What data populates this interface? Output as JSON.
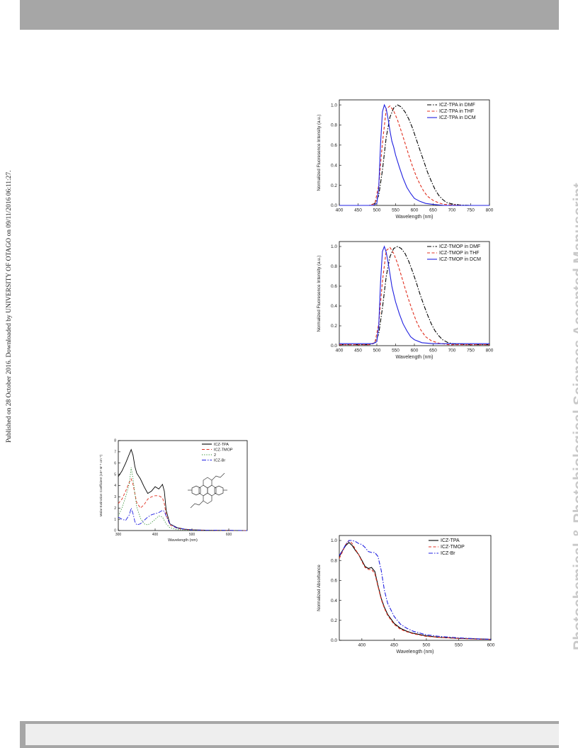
{
  "page": {
    "side_note": "Published on 28 October 2016. Downloaded by UNIVERSITY OF OTAGO on 09/11/2016 06:11:27.",
    "watermark": "Photochemical & Photobiological Sciences Accepted Manuscript"
  },
  "chart_data": [
    {
      "id": "fluor-tpa",
      "type": "line",
      "xlabel": "Wavelength (nm)",
      "ylabel": "Normalized Fluoresence Intensity (a.u.)",
      "xlim": [
        400,
        800
      ],
      "ylim": [
        0,
        1.05
      ],
      "xticks": [
        400,
        450,
        500,
        550,
        600,
        650,
        700,
        750,
        800
      ],
      "yticks": [
        0.0,
        0.2,
        0.4,
        0.6,
        0.8,
        1.0
      ],
      "legend_position": "top-right",
      "series": [
        {
          "name": "ICZ-TPA  in DMF",
          "color": "#000000",
          "style": "dashdot",
          "x": [
            400,
            480,
            495,
            505,
            515,
            525,
            535,
            545,
            555,
            565,
            575,
            585,
            595,
            605,
            615,
            625,
            635,
            645,
            655,
            665,
            675,
            685,
            700,
            720,
            750,
            800
          ],
          "y": [
            0,
            0,
            0.02,
            0.1,
            0.35,
            0.68,
            0.88,
            0.97,
            1.0,
            0.98,
            0.93,
            0.86,
            0.77,
            0.66,
            0.55,
            0.44,
            0.33,
            0.24,
            0.16,
            0.1,
            0.06,
            0.03,
            0.015,
            0.005,
            0,
            0
          ]
        },
        {
          "name": "ICZ-TPA  in THF",
          "color": "#e03020",
          "style": "dash",
          "x": [
            400,
            480,
            495,
            505,
            515,
            525,
            535,
            545,
            555,
            565,
            575,
            585,
            595,
            605,
            615,
            625,
            635,
            650,
            665,
            680,
            700,
            730,
            800
          ],
          "y": [
            0,
            0,
            0.02,
            0.2,
            0.62,
            0.96,
            0.99,
            0.94,
            0.85,
            0.74,
            0.62,
            0.5,
            0.39,
            0.29,
            0.21,
            0.14,
            0.09,
            0.05,
            0.025,
            0.01,
            0.005,
            0,
            0
          ]
        },
        {
          "name": "ICZ-TPA  in DCM",
          "color": "#2020e0",
          "style": "solid",
          "x": [
            400,
            490,
            500,
            505,
            510,
            515,
            520,
            525,
            530,
            535,
            540,
            545,
            550,
            560,
            570,
            580,
            590,
            600,
            615,
            630,
            650,
            680,
            720,
            800
          ],
          "y": [
            0,
            0,
            0.02,
            0.18,
            0.62,
            0.93,
            1.0,
            0.96,
            0.86,
            0.74,
            0.64,
            0.58,
            0.5,
            0.38,
            0.27,
            0.18,
            0.12,
            0.07,
            0.04,
            0.02,
            0.01,
            0,
            0,
            0
          ]
        }
      ]
    },
    {
      "id": "fluor-tmop",
      "type": "line",
      "xlabel": "Wavelength (nm)",
      "ylabel": "Normalized Fluoresence Intensity (a.u.)",
      "xlim": [
        400,
        800
      ],
      "ylim": [
        0,
        1.05
      ],
      "xticks": [
        400,
        450,
        500,
        550,
        600,
        650,
        700,
        750,
        800
      ],
      "yticks": [
        0.0,
        0.2,
        0.4,
        0.6,
        0.8,
        1.0
      ],
      "legend_position": "top-right",
      "series": [
        {
          "name": "ICZ-TMOP in DMF",
          "color": "#000000",
          "style": "dashdot",
          "x": [
            400,
            480,
            495,
            505,
            515,
            525,
            535,
            545,
            555,
            565,
            575,
            585,
            595,
            605,
            615,
            625,
            635,
            645,
            655,
            665,
            675,
            690,
            710,
            740,
            800
          ],
          "y": [
            0.01,
            0.01,
            0.03,
            0.12,
            0.38,
            0.7,
            0.9,
            0.98,
            1.0,
            0.98,
            0.93,
            0.85,
            0.75,
            0.64,
            0.52,
            0.41,
            0.31,
            0.22,
            0.15,
            0.1,
            0.06,
            0.03,
            0.015,
            0.01,
            0.01
          ]
        },
        {
          "name": "ICZ-TMOP in THF",
          "color": "#e03020",
          "style": "dash",
          "x": [
            400,
            480,
            495,
            505,
            515,
            525,
            535,
            545,
            555,
            565,
            575,
            585,
            595,
            605,
            615,
            630,
            645,
            665,
            690,
            720,
            800
          ],
          "y": [
            0.01,
            0.01,
            0.03,
            0.22,
            0.65,
            0.96,
            0.99,
            0.93,
            0.83,
            0.71,
            0.58,
            0.46,
            0.35,
            0.25,
            0.17,
            0.09,
            0.05,
            0.025,
            0.01,
            0.01,
            0.01
          ]
        },
        {
          "name": "ICZ-TMOP in DCM",
          "color": "#2020e0",
          "style": "solid",
          "x": [
            400,
            490,
            500,
            505,
            510,
            515,
            520,
            525,
            530,
            535,
            540,
            545,
            550,
            560,
            570,
            580,
            590,
            600,
            620,
            650,
            700,
            800
          ],
          "y": [
            0.02,
            0.02,
            0.04,
            0.2,
            0.65,
            0.95,
            1.0,
            0.94,
            0.84,
            0.72,
            0.6,
            0.52,
            0.44,
            0.32,
            0.22,
            0.15,
            0.09,
            0.06,
            0.03,
            0.02,
            0.02,
            0.02
          ]
        }
      ]
    },
    {
      "id": "absorption",
      "type": "line",
      "xlabel": "Wavelength (nm)",
      "ylabel": "Molar Extinction Coefficient (10⁴ M⁻¹ cm⁻¹)",
      "xlim": [
        300,
        650
      ],
      "ylim": [
        0,
        8
      ],
      "xticks": [
        300,
        400,
        500,
        600
      ],
      "yticks": [
        0,
        1,
        2,
        3,
        4,
        5,
        6,
        7,
        8
      ],
      "legend_position": "top-right",
      "series": [
        {
          "name": "ICZ-TPA",
          "color": "#000000",
          "style": "solid",
          "x": [
            300,
            310,
            320,
            330,
            335,
            340,
            345,
            350,
            360,
            370,
            380,
            390,
            400,
            410,
            415,
            420,
            425,
            430,
            440,
            460,
            480,
            500,
            550,
            650
          ],
          "y": [
            4.8,
            5.3,
            6.0,
            6.8,
            7.2,
            6.7,
            5.7,
            5.1,
            4.6,
            3.9,
            3.3,
            3.5,
            3.9,
            3.7,
            3.9,
            4.1,
            3.5,
            1.8,
            0.6,
            0.25,
            0.12,
            0.06,
            0.02,
            0
          ]
        },
        {
          "name": "ICZ-TMOP",
          "color": "#e03020",
          "style": "dash",
          "x": [
            300,
            310,
            320,
            330,
            335,
            340,
            345,
            350,
            360,
            370,
            380,
            390,
            400,
            410,
            420,
            425,
            430,
            440,
            460,
            480,
            500,
            550,
            650
          ],
          "y": [
            2.4,
            2.8,
            3.5,
            4.3,
            4.6,
            4.1,
            3.3,
            2.5,
            2.0,
            2.3,
            2.8,
            3.0,
            3.1,
            3.1,
            2.9,
            2.4,
            1.4,
            0.5,
            0.2,
            0.1,
            0.05,
            0.02,
            0
          ]
        },
        {
          "name": "2",
          "color": "#2a8a2a",
          "style": "dot",
          "x": [
            300,
            310,
            320,
            330,
            335,
            340,
            345,
            350,
            360,
            370,
            380,
            390,
            400,
            410,
            420,
            430,
            440,
            460,
            500,
            650
          ],
          "y": [
            1.3,
            2.0,
            3.0,
            4.2,
            5.6,
            4.6,
            3.3,
            2.1,
            1.1,
            0.6,
            0.5,
            0.7,
            1.0,
            1.3,
            1.2,
            0.6,
            0.25,
            0.08,
            0.03,
            0
          ]
        },
        {
          "name": "ICZ-Br",
          "color": "#2020e0",
          "style": "dashdot",
          "x": [
            300,
            310,
            320,
            330,
            335,
            340,
            345,
            350,
            360,
            370,
            380,
            390,
            400,
            410,
            420,
            425,
            430,
            440,
            460,
            500,
            650
          ],
          "y": [
            1.2,
            1.0,
            0.9,
            1.4,
            2.0,
            1.5,
            0.8,
            0.5,
            0.6,
            0.9,
            1.2,
            1.4,
            1.5,
            1.6,
            1.8,
            1.7,
            1.3,
            0.6,
            0.2,
            0.05,
            0
          ]
        }
      ]
    },
    {
      "id": "norm-absorbance",
      "type": "line",
      "xlabel": "Wavelength (nm)",
      "ylabel": "Normalized Absorbance",
      "xlim": [
        365,
        600
      ],
      "ylim": [
        0,
        1.05
      ],
      "xticks": [
        400,
        450,
        500,
        550,
        600
      ],
      "yticks": [
        0.0,
        0.2,
        0.4,
        0.6,
        0.8,
        1.0
      ],
      "legend_position": "top-right",
      "series": [
        {
          "name": "ICZ-TPA",
          "color": "#000000",
          "style": "solid",
          "x": [
            365,
            370,
            375,
            380,
            385,
            390,
            395,
            400,
            405,
            410,
            415,
            420,
            425,
            430,
            435,
            440,
            450,
            460,
            470,
            480,
            500,
            520,
            550,
            580,
            600
          ],
          "y": [
            0.84,
            0.9,
            0.95,
            0.98,
            0.95,
            0.9,
            0.86,
            0.8,
            0.74,
            0.72,
            0.73,
            0.69,
            0.55,
            0.42,
            0.33,
            0.26,
            0.17,
            0.12,
            0.09,
            0.07,
            0.045,
            0.03,
            0.02,
            0.015,
            0.01
          ]
        },
        {
          "name": "ICZ-TMOP",
          "color": "#e03020",
          "style": "dash",
          "x": [
            365,
            370,
            375,
            380,
            385,
            390,
            395,
            400,
            405,
            410,
            415,
            420,
            425,
            430,
            435,
            440,
            450,
            460,
            470,
            480,
            500,
            520,
            550,
            580,
            600
          ],
          "y": [
            0.82,
            0.89,
            0.96,
            1.0,
            0.97,
            0.91,
            0.86,
            0.79,
            0.73,
            0.71,
            0.71,
            0.67,
            0.54,
            0.41,
            0.32,
            0.25,
            0.16,
            0.11,
            0.085,
            0.065,
            0.04,
            0.03,
            0.02,
            0.012,
            0.01
          ]
        },
        {
          "name": "ICZ-Br",
          "color": "#2020e0",
          "style": "dashdot",
          "x": [
            365,
            370,
            375,
            380,
            385,
            390,
            395,
            400,
            405,
            410,
            415,
            420,
            425,
            430,
            435,
            440,
            450,
            460,
            470,
            480,
            500,
            520,
            550,
            580,
            600
          ],
          "y": [
            0.85,
            0.9,
            0.96,
            1.0,
            1.0,
            0.99,
            0.97,
            0.96,
            0.93,
            0.89,
            0.88,
            0.88,
            0.84,
            0.7,
            0.5,
            0.37,
            0.24,
            0.16,
            0.12,
            0.09,
            0.055,
            0.04,
            0.025,
            0.015,
            0.01
          ]
        }
      ]
    }
  ]
}
